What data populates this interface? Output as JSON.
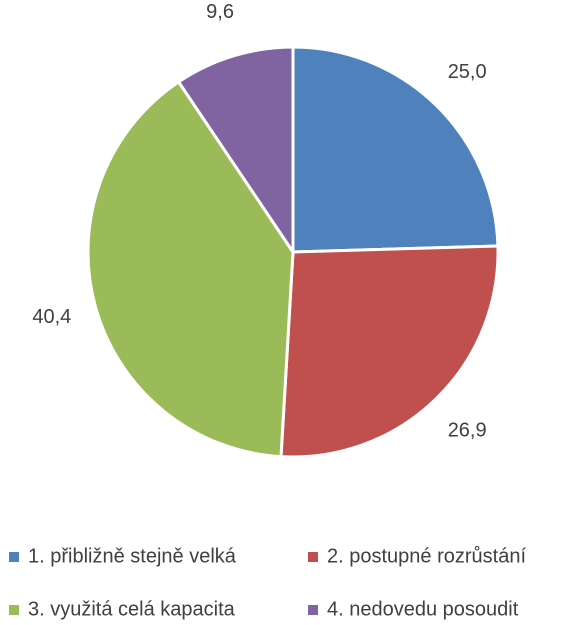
{
  "chart_data": {
    "type": "pie",
    "categories": [
      "1. přibližně stejně velká",
      "2. postupné rozrůstání",
      "3. využitá celá kapacita",
      "4. nedovedu posoudit"
    ],
    "values": [
      25,
      26.9,
      40.4,
      9.6
    ],
    "value_labels": [
      "25,0",
      "26,9",
      "40,4",
      "9,6"
    ],
    "colors": [
      "#4f81bd",
      "#c0504d",
      "#9bbb59",
      "#8064a2"
    ],
    "legend": "bottom"
  }
}
